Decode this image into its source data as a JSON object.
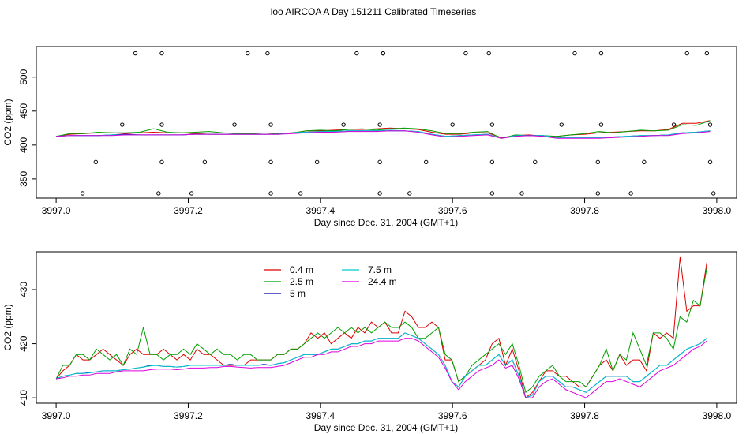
{
  "title": "loo AIRCOA A  Day 151211  Calibrated Timeseries",
  "colors": {
    "0.4 m": "#dd0000",
    "2.5 m": "#00a000",
    "5 m": "#0000aa",
    "7.5 m": "#00cccc",
    "24.4 m": "#dd00dd"
  },
  "chart_data": [
    {
      "type": "line",
      "xlabel": "Day since Dec. 31, 2004 (GMT+1)",
      "ylabel": "CO2 (ppm)",
      "xlim": [
        3996.97,
        3998.03
      ],
      "ylim": [
        322,
        545
      ],
      "xticks": [
        "3997.0",
        "3997.2",
        "3997.4",
        "3997.6",
        "3997.8",
        "3998.0"
      ],
      "yticks": [
        "350",
        "400",
        "450",
        "500"
      ],
      "xtick_values": [
        3997.0,
        3997.2,
        3997.4,
        3997.6,
        3997.8,
        3998.0
      ],
      "ytick_values": [
        350,
        400,
        450,
        500
      ],
      "x_start": 3997.0,
      "x_end": 3997.99,
      "series": [
        {
          "name": "0.4 m",
          "color": "#dd0000",
          "values": [
            413,
            416,
            417,
            418,
            418,
            417,
            418,
            419,
            418,
            418,
            417,
            416,
            416,
            416,
            416,
            416,
            417,
            418,
            421,
            421,
            422,
            423,
            423,
            424,
            425,
            424,
            423,
            419,
            416,
            416,
            418,
            418,
            411,
            414,
            415,
            413,
            413,
            415,
            416,
            418,
            419,
            420,
            421,
            421,
            423,
            432,
            432,
            436
          ]
        },
        {
          "name": "2.5 m",
          "color": "#00a000",
          "values": [
            413,
            417,
            417,
            419,
            418,
            418,
            419,
            424,
            419,
            418,
            419,
            420,
            418,
            417,
            417,
            416,
            417,
            418,
            421,
            422,
            421,
            423,
            424,
            422,
            424,
            425,
            424,
            421,
            417,
            417,
            419,
            420,
            410,
            415,
            414,
            414,
            413,
            415,
            417,
            420,
            418,
            420,
            422,
            421,
            422,
            430,
            429,
            436
          ]
        },
        {
          "name": "5 m",
          "color": "#0000aa",
          "values": [
            413,
            414,
            414,
            414,
            415,
            416,
            415,
            415,
            415,
            415,
            416,
            416,
            416,
            416,
            416,
            416,
            416,
            418,
            419,
            420,
            420,
            421,
            421,
            421,
            421,
            421,
            420,
            416,
            413,
            414,
            415,
            416,
            410,
            414,
            414,
            414,
            411,
            411,
            411,
            411,
            412,
            413,
            414,
            414,
            415,
            418,
            419,
            421
          ]
        },
        {
          "name": "7.5 m",
          "color": "#00cccc",
          "values": [
            413,
            414,
            414,
            414,
            415,
            415,
            415,
            415,
            415,
            415,
            416,
            416,
            416,
            416,
            416,
            416,
            416,
            418,
            419,
            420,
            420,
            421,
            421,
            421,
            422,
            421,
            420,
            416,
            413,
            414,
            415,
            416,
            410,
            414,
            414,
            414,
            411,
            411,
            411,
            411,
            412,
            413,
            414,
            414,
            415,
            418,
            419,
            421
          ]
        },
        {
          "name": "24.4 m",
          "color": "#dd00dd",
          "values": [
            413,
            414,
            414,
            414,
            414,
            415,
            415,
            415,
            415,
            415,
            416,
            416,
            416,
            416,
            416,
            416,
            416,
            417,
            418,
            419,
            419,
            420,
            420,
            420,
            421,
            421,
            419,
            415,
            412,
            413,
            414,
            415,
            410,
            413,
            414,
            413,
            410,
            410,
            410,
            410,
            411,
            412,
            413,
            414,
            414,
            417,
            418,
            420
          ]
        }
      ],
      "scatter_x": [
        3997.04,
        3997.06,
        3997.1,
        3997.12,
        3997.155,
        3997.16,
        3997.16,
        3997.16,
        3997.205,
        3997.225,
        3997.27,
        3997.29,
        3997.32,
        3997.325,
        3997.325,
        3997.325,
        3997.37,
        3997.395,
        3997.435,
        3997.455,
        3997.49,
        3997.49,
        3997.49,
        3997.495,
        3997.495,
        3997.535,
        3997.56,
        3997.6,
        3997.62,
        3997.655,
        3997.66,
        3997.66,
        3997.66,
        3997.705,
        3997.725,
        3997.765,
        3997.785,
        3997.82,
        3997.82,
        3997.825,
        3997.825,
        3997.87,
        3997.89,
        3997.935,
        3997.955,
        3997.985,
        3997.99,
        3997.99,
        3997.995
      ],
      "scatter_y": [
        329,
        375,
        430,
        535,
        329,
        375,
        430,
        535,
        329,
        375,
        430,
        535,
        535,
        329,
        375,
        430,
        329,
        375,
        430,
        535,
        329,
        375,
        430,
        535,
        535,
        329,
        375,
        430,
        535,
        535,
        329,
        375,
        430,
        329,
        375,
        430,
        535,
        329,
        375,
        430,
        535,
        329,
        375,
        430,
        535,
        535,
        430,
        375,
        329
      ]
    },
    {
      "type": "line",
      "xlabel": "Day since Dec. 31, 2004 (GMT+1)",
      "ylabel": "CO2 (ppm)",
      "xlim": [
        3996.97,
        3998.03
      ],
      "ylim": [
        409,
        437
      ],
      "xticks": [
        "3997.0",
        "3997.2",
        "3997.4",
        "3997.6",
        "3997.8",
        "3998.0"
      ],
      "yticks": [
        "410",
        "420",
        "430"
      ],
      "xtick_values": [
        3997.0,
        3997.2,
        3997.4,
        3997.6,
        3997.8,
        3998.0
      ],
      "ytick_values": [
        410,
        420,
        430
      ],
      "legend": "top-left",
      "x_start": 3997.0,
      "x_end": 3997.985,
      "series": [
        {
          "name": "0.4 m",
          "color": "#dd0000",
          "values": [
            413.5,
            415,
            416,
            418,
            417,
            417,
            418,
            419,
            418,
            417,
            416,
            418,
            419,
            418,
            418,
            418,
            419,
            418,
            417,
            418,
            417,
            419,
            418,
            418,
            417,
            416,
            416,
            416,
            416,
            417,
            417,
            417,
            417,
            418,
            418,
            419,
            419,
            420,
            422,
            421,
            422,
            420,
            421,
            422,
            421,
            423,
            422,
            424,
            423,
            424,
            422,
            422,
            426,
            425,
            423,
            423,
            424,
            423,
            417,
            417,
            413,
            414,
            415,
            416,
            417,
            420,
            421,
            416,
            419,
            415,
            410,
            411,
            413,
            415,
            415,
            414,
            414,
            413,
            412,
            412,
            414,
            416,
            417,
            415,
            418,
            416,
            417,
            417,
            415,
            422,
            421,
            422,
            421,
            436,
            426,
            427,
            427,
            435
          ]
        },
        {
          "name": "2.5 m",
          "color": "#00a000",
          "values": [
            413.5,
            416,
            416,
            418,
            418,
            417,
            419,
            418,
            417,
            418,
            416,
            419,
            418,
            423,
            418,
            418,
            417,
            418,
            418,
            419,
            418,
            420,
            419,
            418,
            419,
            418,
            418,
            417,
            418,
            418,
            417,
            417,
            417,
            418,
            418,
            419,
            419,
            420,
            421,
            422,
            421,
            422,
            423,
            422,
            423,
            422,
            423,
            422,
            423,
            424,
            423,
            423,
            424,
            423,
            421,
            421,
            422,
            423,
            418,
            417,
            413,
            414,
            416,
            417,
            418,
            419,
            420,
            418,
            420,
            416,
            411,
            412,
            414,
            415,
            416,
            414,
            413,
            413,
            413,
            412,
            414,
            416,
            419,
            415,
            418,
            417,
            422,
            419,
            416,
            422,
            422,
            421,
            419,
            425,
            424,
            428,
            427,
            434
          ]
        },
        {
          "name": "5 m",
          "color": "#0000aa",
          "values": [
            413.5,
            414,
            414.2,
            414.5,
            414.5,
            414.7,
            414.8,
            415,
            415,
            415,
            415.2,
            415.3,
            415.5,
            415.7,
            416,
            416,
            415.8,
            415.8,
            415.7,
            415.8,
            416,
            416,
            416,
            416,
            416,
            416,
            416.2,
            416,
            416,
            416,
            416,
            416.2,
            416,
            416.3,
            416.5,
            417,
            417.5,
            418,
            418,
            418,
            418.5,
            419,
            419,
            419.5,
            420,
            420,
            420.5,
            420.5,
            421,
            421,
            421,
            421,
            422,
            421.5,
            421,
            420,
            419,
            418,
            416,
            413,
            412,
            414,
            415,
            416,
            416,
            417,
            418,
            416,
            417,
            414,
            410,
            410.5,
            413,
            414,
            414,
            413,
            412,
            412,
            411.5,
            411,
            412,
            413,
            414,
            414,
            414,
            414,
            413,
            413,
            414,
            415,
            416,
            416,
            417,
            418,
            419,
            419.5,
            420,
            421
          ]
        },
        {
          "name": "7.5 m",
          "color": "#00cccc",
          "values": [
            413.5,
            414,
            414.2,
            414.5,
            414.5,
            414.6,
            414.8,
            415,
            415,
            415,
            415.2,
            415.3,
            415.5,
            415.7,
            415.9,
            416,
            415.8,
            415.8,
            415.7,
            415.8,
            416,
            416,
            416,
            416,
            416,
            416,
            416.1,
            416,
            416,
            416,
            416,
            416.1,
            416,
            416.3,
            416.5,
            417,
            417.5,
            418,
            418,
            418,
            418.5,
            419,
            419,
            419.5,
            420,
            420,
            420.5,
            420.5,
            421,
            421,
            421,
            421,
            422,
            421.5,
            421,
            420,
            419,
            418,
            416,
            413,
            412,
            414,
            415,
            416,
            416,
            417,
            418,
            416,
            417,
            414,
            410,
            410.5,
            413,
            414,
            414,
            413,
            412,
            412,
            411.5,
            411,
            412,
            413,
            414,
            414,
            414,
            414,
            413,
            413,
            414,
            415,
            416,
            416,
            417,
            418,
            419,
            419.5,
            420,
            421
          ]
        },
        {
          "name": "24.4 m",
          "color": "#dd00dd",
          "values": [
            413.5,
            413.7,
            414,
            414,
            414.2,
            414.2,
            414.5,
            414.5,
            414.5,
            414.8,
            415,
            415,
            415,
            415,
            415.2,
            415.3,
            415.3,
            415.3,
            415.2,
            415.3,
            415.5,
            415.5,
            415.5,
            415.6,
            415.6,
            415.8,
            415.8,
            415.7,
            415.6,
            415.5,
            415.6,
            415.6,
            415.6,
            415.8,
            416,
            416.5,
            417,
            417.5,
            417.5,
            418,
            418,
            418.5,
            418.5,
            419,
            419.5,
            419.5,
            420,
            420,
            420.5,
            420.5,
            420.5,
            420.5,
            421,
            421,
            420.5,
            419.5,
            418.5,
            417.5,
            415.5,
            413,
            411.5,
            413,
            414,
            415,
            415.5,
            416,
            417,
            415.5,
            416,
            413.5,
            410,
            410,
            412,
            413,
            413.5,
            412.5,
            411.5,
            411,
            410.5,
            410,
            411,
            412,
            413,
            413,
            413.5,
            413,
            412.5,
            412,
            413,
            414,
            415,
            415.5,
            416,
            417,
            418,
            419,
            419.5,
            420.5
          ]
        }
      ]
    }
  ]
}
